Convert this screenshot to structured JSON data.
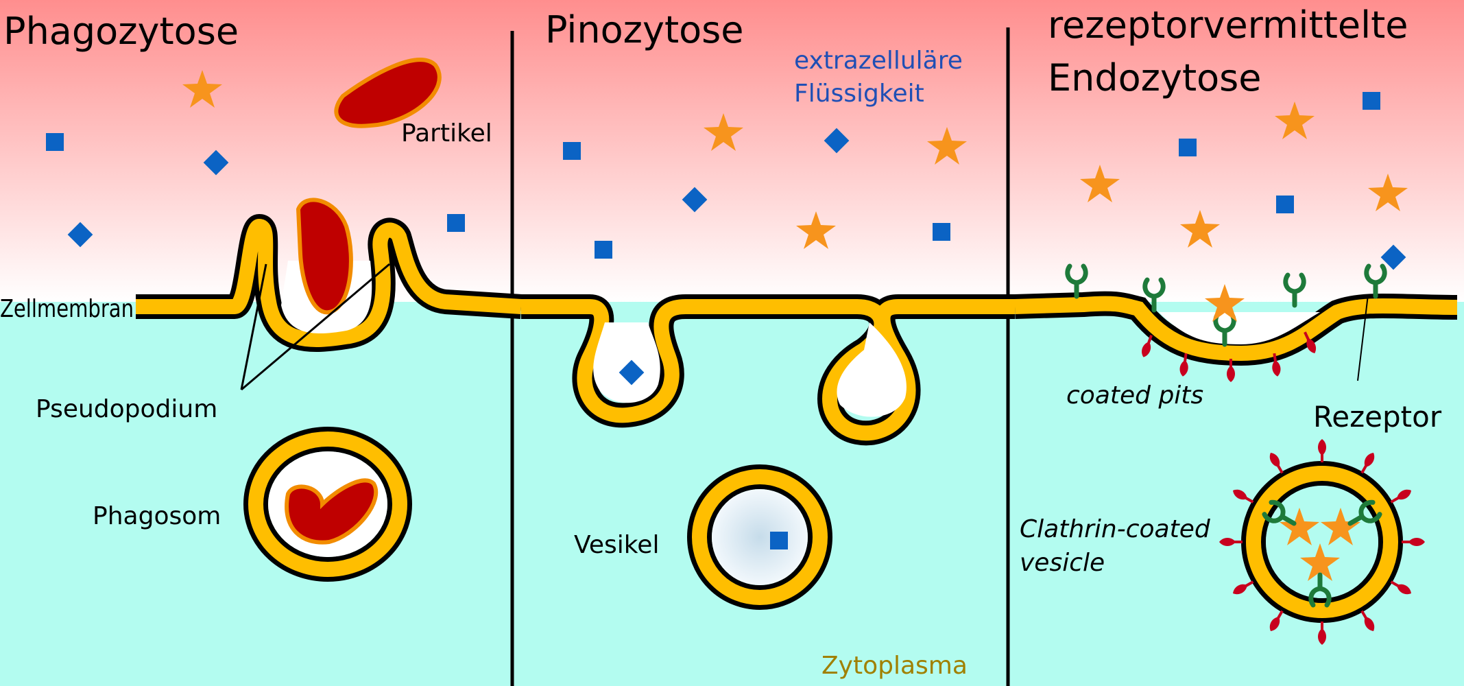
{
  "titles": {
    "phago": "Phagozytose",
    "pino": "Pinozytose",
    "rme_line1": "rezeptorvermittelte",
    "rme_line2": "Endozytose"
  },
  "labels": {
    "partikel": "Partikel",
    "zellmembran": "Zellmembran",
    "pseudopodium": "Pseudopodium",
    "phagosom": "Phagosom",
    "extra_line1": "extrazelluläre",
    "extra_line2": "Flüssigkeit",
    "vesikel": "Vesikel",
    "zytoplasma": "Zytoplasma",
    "coated_pits": "coated pits",
    "rezeptor": "Rezeptor",
    "ccv_line1": "Clathrin-coated",
    "ccv_line2": "vesicle"
  },
  "colors": {
    "extracellular_top": "#ff8e8e",
    "extracellular_bottom": "#ffffff",
    "cytoplasm": "#b3fcf0",
    "membrane": "#ffbe00",
    "outline": "#000000",
    "particle": "#bf0000",
    "particle_edge": "#f28c00",
    "star": "#f7941d",
    "square": "#0b63c4",
    "receptor": "#1e7a3a",
    "clathrin": "#c8001e",
    "blue_text": "#1f4fb5",
    "zyto_text": "#a08000"
  }
}
